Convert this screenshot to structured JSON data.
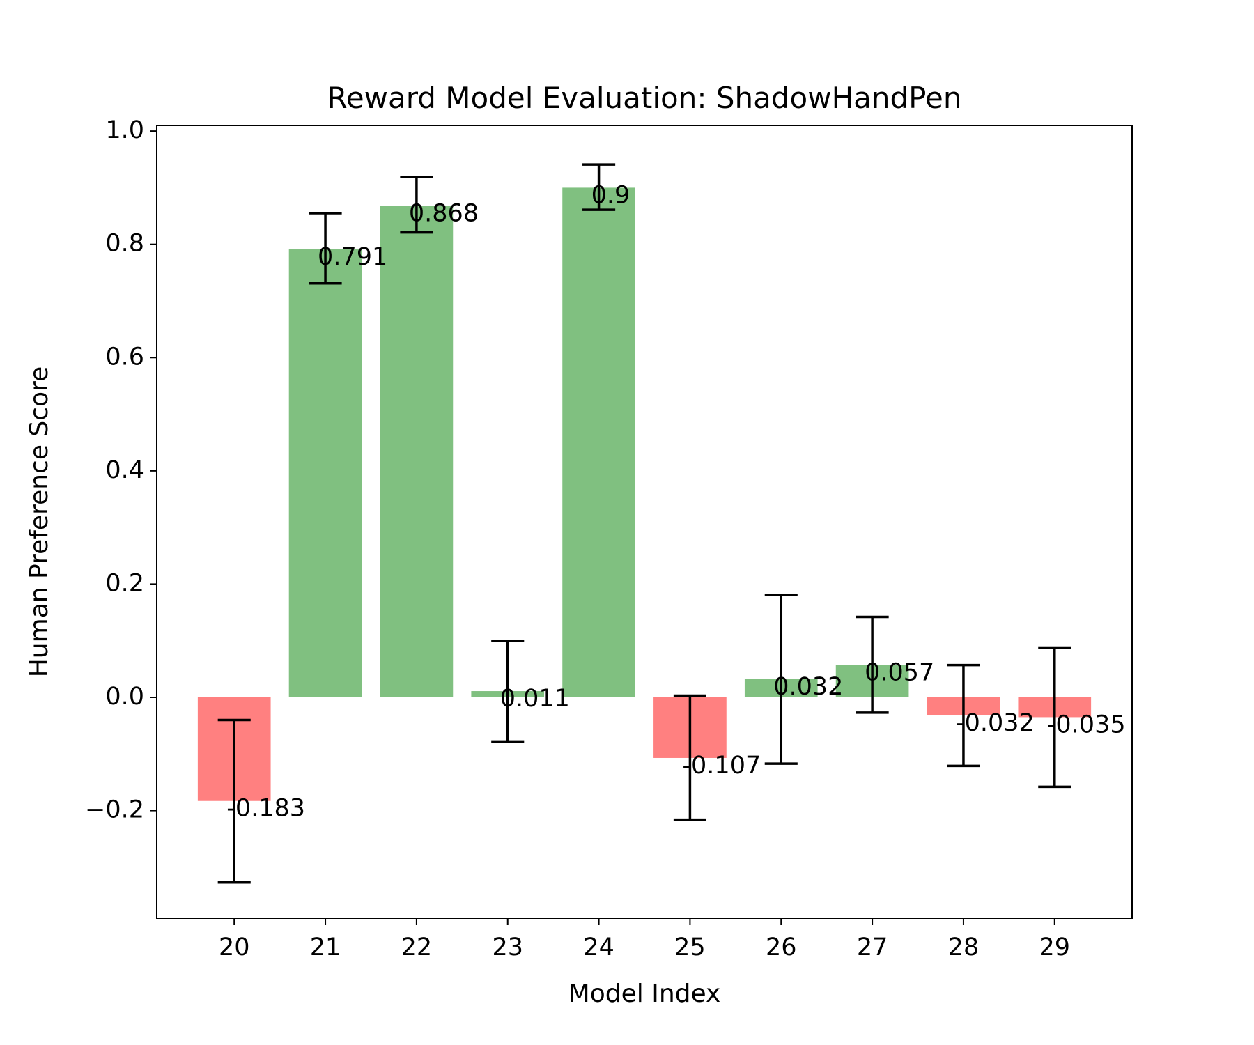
{
  "chart_data": {
    "type": "bar",
    "title": "Reward Model Evaluation: ShadowHandPen",
    "xlabel": "Model Index",
    "ylabel": "Human Preference Score",
    "categories": [
      "20",
      "21",
      "22",
      "23",
      "24",
      "25",
      "26",
      "27",
      "28",
      "29"
    ],
    "values": [
      -0.183,
      0.791,
      0.868,
      0.011,
      0.9,
      -0.107,
      0.032,
      0.057,
      -0.032,
      -0.035
    ],
    "value_labels": [
      "-0.183",
      "0.791",
      "0.868",
      "0.011",
      "0.9",
      "-0.107",
      "0.032",
      "0.057",
      "-0.032",
      "-0.035"
    ],
    "error_low": [
      -0.327,
      0.731,
      0.821,
      -0.078,
      0.861,
      -0.216,
      -0.117,
      -0.027,
      -0.121,
      -0.158
    ],
    "error_high": [
      -0.04,
      0.855,
      0.919,
      0.1,
      0.941,
      0.003,
      0.181,
      0.142,
      0.057,
      0.088
    ],
    "ylim": [
      -0.39,
      1.01
    ],
    "yticks": [
      -0.2,
      0.0,
      0.2,
      0.4,
      0.6,
      0.8,
      1.0
    ],
    "ytick_labels": [
      "−0.2",
      "0.0",
      "0.2",
      "0.4",
      "0.6",
      "0.8",
      "1.0"
    ],
    "xlim": [
      19.15,
      29.85
    ],
    "grid": false,
    "colors": {
      "positive": "#80c080",
      "negative": "#ff8080",
      "errorbar": "#000000",
      "axis": "#000000"
    }
  }
}
